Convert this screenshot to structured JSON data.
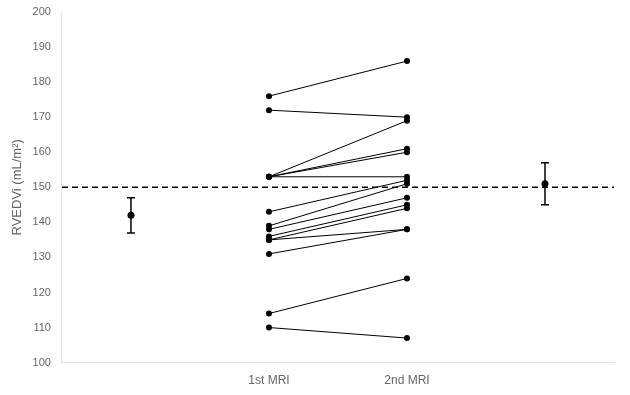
{
  "chart_data": {
    "type": "paired",
    "categories": [
      null,
      "1st MRI",
      "2nd MRI",
      null
    ],
    "ylabel": "RVEDVi (mL/m²)",
    "ylim": [
      100,
      200
    ],
    "yticks": [
      100,
      110,
      120,
      130,
      140,
      150,
      160,
      170,
      180,
      190,
      200
    ],
    "grid": false,
    "series": [
      {
        "type": "line",
        "marker": "circle",
        "color": "#000000",
        "values": [
          null,
          176,
          186,
          null
        ]
      },
      {
        "type": "line",
        "marker": "circle",
        "color": "#000000",
        "values": [
          null,
          172,
          170,
          null
        ]
      },
      {
        "type": "line",
        "marker": "circle",
        "color": "#000000",
        "values": [
          null,
          153,
          169,
          null
        ]
      },
      {
        "type": "line",
        "marker": "circle",
        "color": "#000000",
        "values": [
          null,
          153,
          161,
          null
        ]
      },
      {
        "type": "line",
        "marker": "circle",
        "color": "#000000",
        "values": [
          null,
          153,
          160,
          null
        ]
      },
      {
        "type": "line",
        "marker": "circle",
        "color": "#000000",
        "values": [
          null,
          153,
          153,
          null
        ]
      },
      {
        "type": "line",
        "marker": "circle",
        "color": "#000000",
        "values": [
          null,
          143,
          152,
          null
        ]
      },
      {
        "type": "line",
        "marker": "circle",
        "color": "#000000",
        "values": [
          null,
          139,
          151,
          null
        ]
      },
      {
        "type": "line",
        "marker": "circle",
        "color": "#000000",
        "values": [
          null,
          138,
          147,
          null
        ]
      },
      {
        "type": "line",
        "marker": "circle",
        "color": "#000000",
        "values": [
          null,
          136,
          145,
          null
        ]
      },
      {
        "type": "line",
        "marker": "circle",
        "color": "#000000",
        "values": [
          null,
          135,
          144,
          null
        ]
      },
      {
        "type": "line",
        "marker": "circle",
        "color": "#000000",
        "values": [
          null,
          135,
          138,
          null
        ]
      },
      {
        "type": "line",
        "marker": "circle",
        "color": "#000000",
        "values": [
          null,
          131,
          138,
          null
        ]
      },
      {
        "type": "line",
        "marker": "circle",
        "color": "#000000",
        "values": [
          null,
          114,
          124,
          null
        ]
      },
      {
        "type": "line",
        "marker": "circle",
        "color": "#000000",
        "values": [
          null,
          110,
          107,
          null
        ]
      },
      {
        "type": "scatter",
        "marker": "circle",
        "color": "#000000",
        "values": [
          142,
          null,
          null,
          151
        ],
        "errors": [
          5,
          null,
          null,
          6
        ]
      }
    ],
    "reference_lines": [
      {
        "y": 150,
        "line_style": "dashed",
        "color": "#000000"
      }
    ]
  }
}
